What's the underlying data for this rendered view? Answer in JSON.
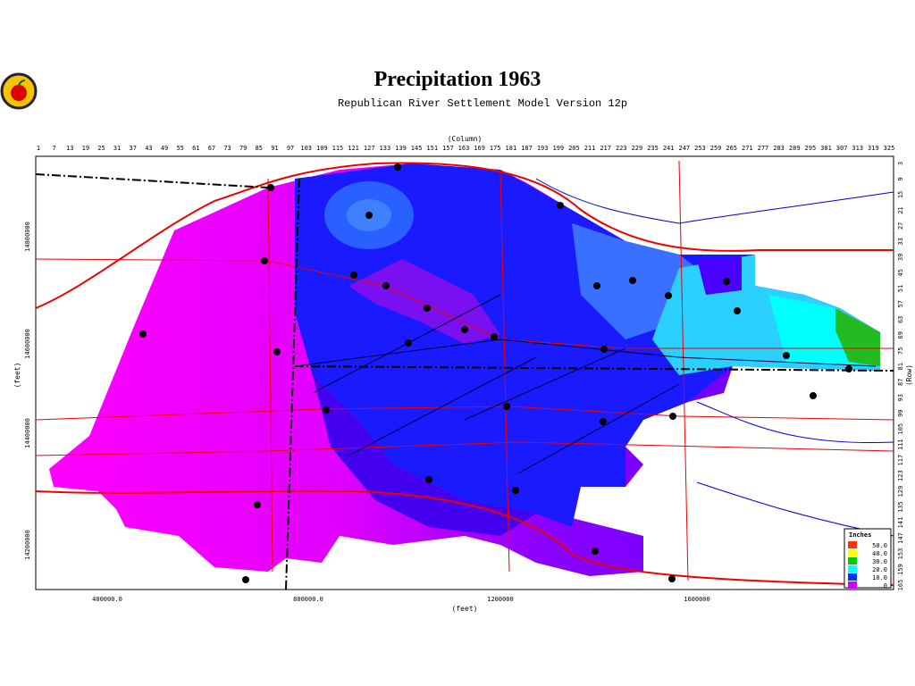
{
  "header": {
    "title": "Precipitation 1963",
    "subtitle": "Republican River Settlement Model Version 12p"
  },
  "top_axis": {
    "label": "(Column)",
    "ticks": [
      1,
      7,
      13,
      19,
      25,
      31,
      37,
      43,
      49,
      55,
      61,
      67,
      73,
      79,
      85,
      91,
      97,
      103,
      109,
      115,
      121,
      127,
      133,
      139,
      145,
      151,
      157,
      163,
      169,
      175,
      181,
      187,
      193,
      199,
      205,
      211,
      217,
      223,
      229,
      235,
      241,
      247,
      253,
      259,
      265,
      271,
      277,
      283,
      289,
      295,
      301,
      307,
      313,
      319,
      325
    ]
  },
  "right_axis": {
    "label": "(Row)",
    "ticks": [
      3,
      9,
      15,
      21,
      27,
      33,
      39,
      45,
      51,
      57,
      63,
      69,
      75,
      81,
      87,
      93,
      99,
      105,
      111,
      117,
      123,
      129,
      135,
      141,
      147,
      153,
      159,
      165
    ]
  },
  "bottom_axis": {
    "label": "(feet)",
    "ticks": [
      "400000.0",
      "800000.0",
      "1200000",
      "1600000"
    ]
  },
  "left_axis": {
    "label": "(feet)",
    "ticks": [
      "14800000",
      "14600000",
      "14400000",
      "14200000"
    ]
  },
  "legend": {
    "title": "Inches",
    "items": [
      {
        "label": "50.0",
        "color": "#ff3300"
      },
      {
        "label": "40.0",
        "color": "#ffff00"
      },
      {
        "label": "30.0",
        "color": "#00cc00"
      },
      {
        "label": "20.0",
        "color": "#00ffff"
      },
      {
        "label": "10.0",
        "color": "#0033ff"
      },
      {
        "label": "0",
        "color": "#cc00ff"
      }
    ]
  }
}
